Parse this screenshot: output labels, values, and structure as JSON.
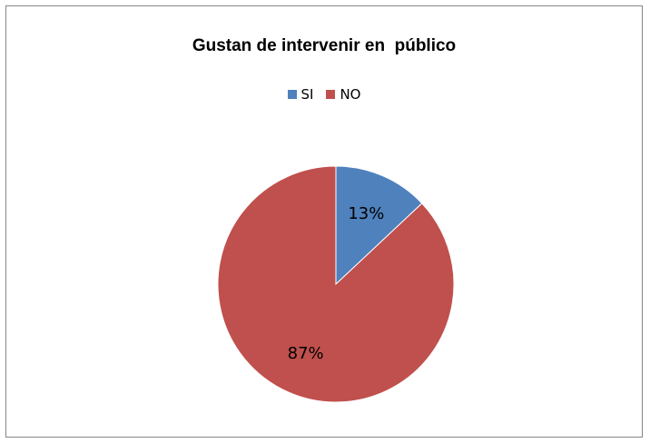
{
  "chart_data": {
    "type": "pie",
    "title": "Gustan de intervenir en  público",
    "categories": [
      "SI",
      "NO"
    ],
    "values": [
      13,
      87
    ],
    "data_labels": [
      "13%",
      "87%"
    ],
    "colors": [
      "#4f81bd",
      "#c0504d"
    ],
    "legend_placement": "top"
  }
}
